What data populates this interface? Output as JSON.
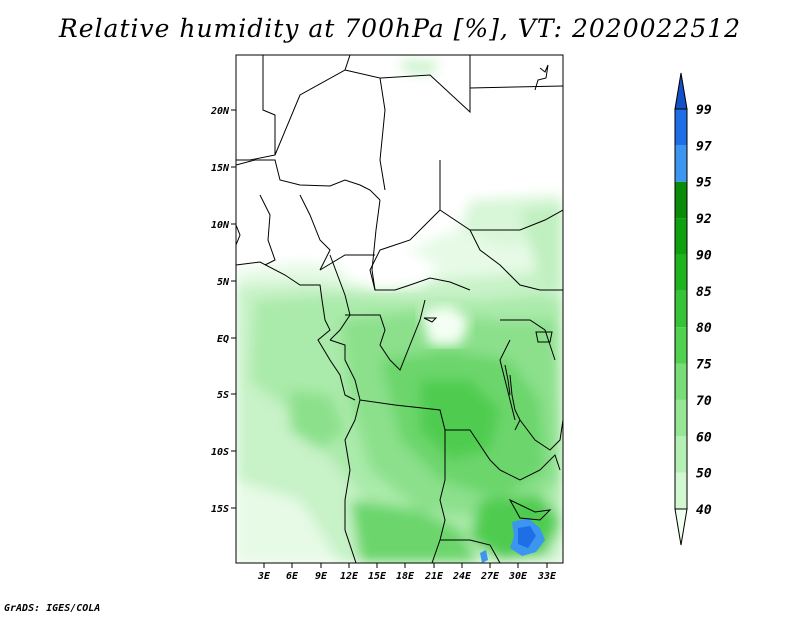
{
  "title": "Relative humidity at 700hPa [%], VT: 2020022512",
  "credit": "GrADS: IGES/COLA",
  "map": {
    "lat_ticks": [
      "20N",
      "15N",
      "10N",
      "5N",
      "EQ",
      "5S",
      "10S",
      "15S"
    ],
    "lon_ticks": [
      "3E",
      "6E",
      "9E",
      "12E",
      "15E",
      "18E",
      "21E",
      "24E",
      "27E",
      "30E",
      "33E"
    ]
  },
  "colorbar": {
    "labels": [
      "40",
      "50",
      "60",
      "70",
      "75",
      "80",
      "85",
      "90",
      "92",
      "95",
      "97",
      "99"
    ],
    "colors": [
      "#f0fff0",
      "#d2f8d2",
      "#b4f0b4",
      "#96e696",
      "#78dc78",
      "#50d250",
      "#37c337",
      "#1eb41e",
      "#0fa00f",
      "#0a8c0a",
      "#3c96f0",
      "#1e6ee6",
      "#1450c8"
    ]
  }
}
